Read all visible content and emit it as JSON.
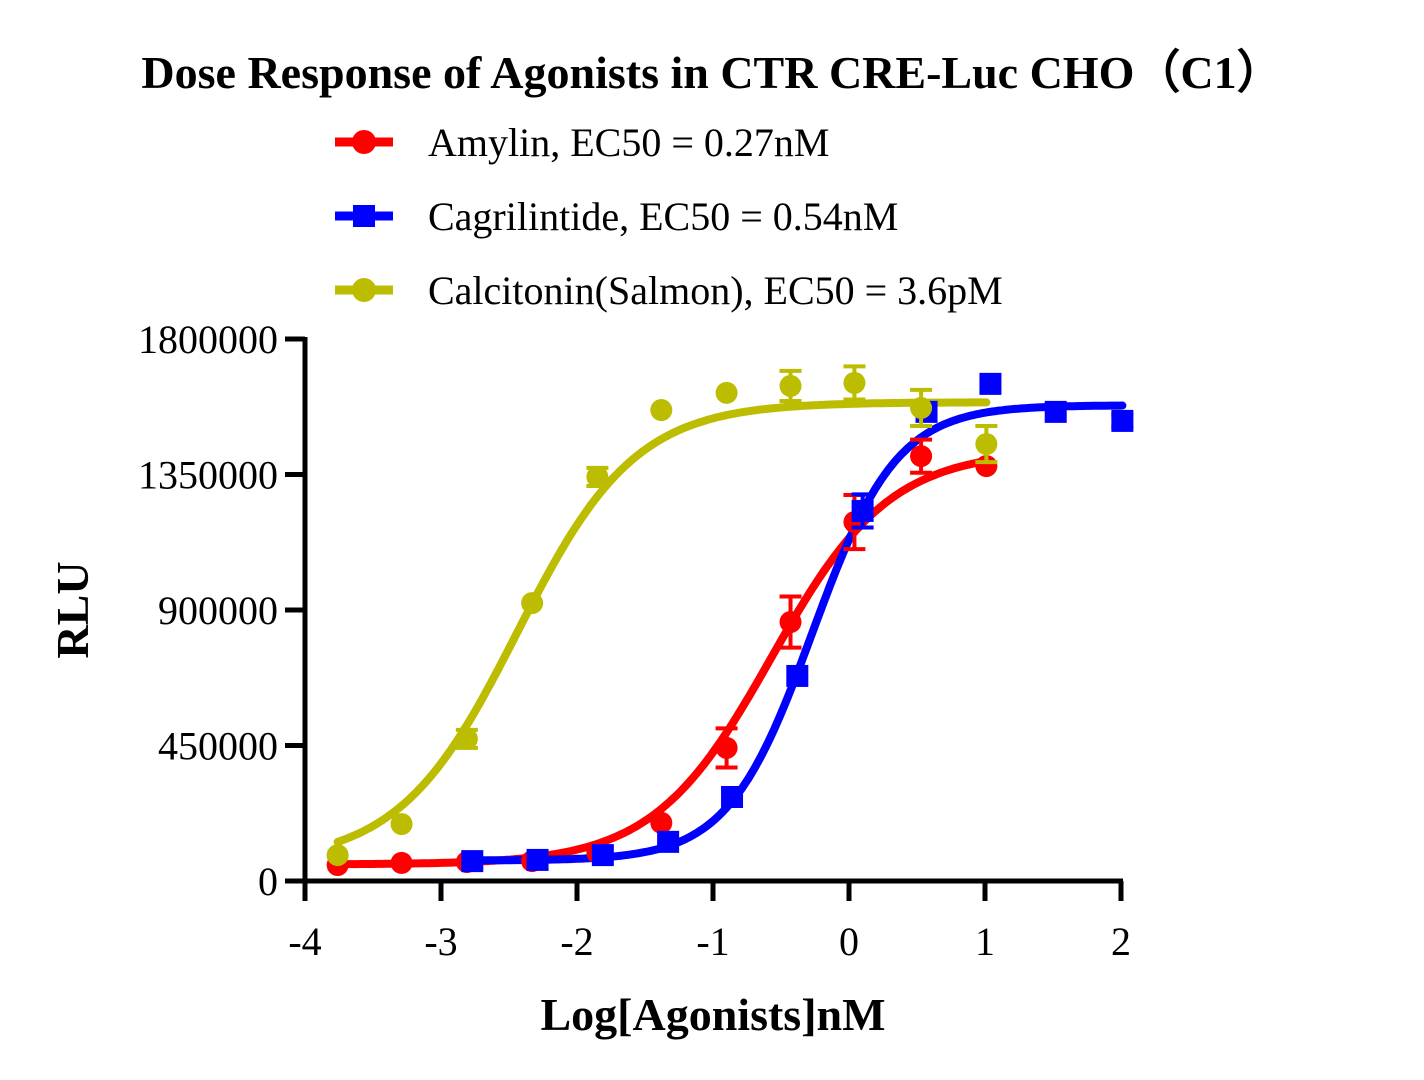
{
  "chart_data": {
    "type": "scatter",
    "title": "Dose Response of Agonists in CTR CRE-Luc CHO（C1）",
    "xlabel": "Log[Agonists]nM",
    "ylabel": "RLU",
    "xlim": [
      -4,
      2
    ],
    "ylim": [
      0,
      1800000
    ],
    "xticks": [
      "-4",
      "-3",
      "-2",
      "-1",
      "0",
      "1",
      "2"
    ],
    "yticks": [
      "0",
      "450000",
      "900000",
      "1350000",
      "1800000"
    ],
    "grid": false,
    "legend_position": "top",
    "series": [
      {
        "name": "Amylin, EC50 = 0.27nM",
        "color": "#ff0000",
        "marker": "circle",
        "x": [
          -3.76,
          -3.29,
          -2.81,
          -2.33,
          -1.85,
          -1.38,
          -0.9,
          -0.43,
          0.04,
          0.53,
          1.01
        ],
        "y": [
          53000,
          60000,
          63000,
          66000,
          93000,
          193000,
          442000,
          860000,
          1192000,
          1411000,
          1378000
        ],
        "err": [
          0,
          0,
          0,
          0,
          0,
          0,
          65000,
          85000,
          90000,
          55000,
          0
        ],
        "fit": {
          "bottom": 55000,
          "top": 1430000,
          "logEC50": -0.57,
          "hill": 1.0
        }
      },
      {
        "name": "Cagrilintide, EC50 = 0.54nM",
        "color": "#0000ff",
        "marker": "square",
        "x": [
          -2.77,
          -2.29,
          -1.81,
          -1.33,
          -0.86,
          -0.38,
          0.1,
          0.57,
          1.04,
          1.52,
          2.01
        ],
        "y": [
          66000,
          70000,
          86000,
          130000,
          279000,
          681000,
          1229000,
          1558000,
          1651000,
          1558000,
          1528000
        ],
        "err": [
          0,
          0,
          0,
          0,
          0,
          0,
          55000,
          0,
          0,
          0,
          20000
        ],
        "fit": {
          "bottom": 68000,
          "top": 1580000,
          "logEC50": -0.27,
          "hill": 1.4
        }
      },
      {
        "name": "Calcitonin(Salmon),  EC50 = 3.6pM",
        "color": "#bcbc00",
        "marker": "circle",
        "x": [
          -3.76,
          -3.29,
          -2.81,
          -2.33,
          -1.85,
          -1.38,
          -0.9,
          -0.43,
          0.04,
          0.53,
          1.01
        ],
        "y": [
          86000,
          189000,
          472000,
          923000,
          1342000,
          1564000,
          1621000,
          1644000,
          1654000,
          1571000,
          1451000
        ],
        "err": [
          0,
          0,
          30000,
          0,
          30000,
          0,
          0,
          50000,
          55000,
          60000,
          60000
        ],
        "fit": {
          "bottom": 60000,
          "top": 1590000,
          "logEC50": -2.44,
          "hill": 1.0
        }
      }
    ]
  }
}
